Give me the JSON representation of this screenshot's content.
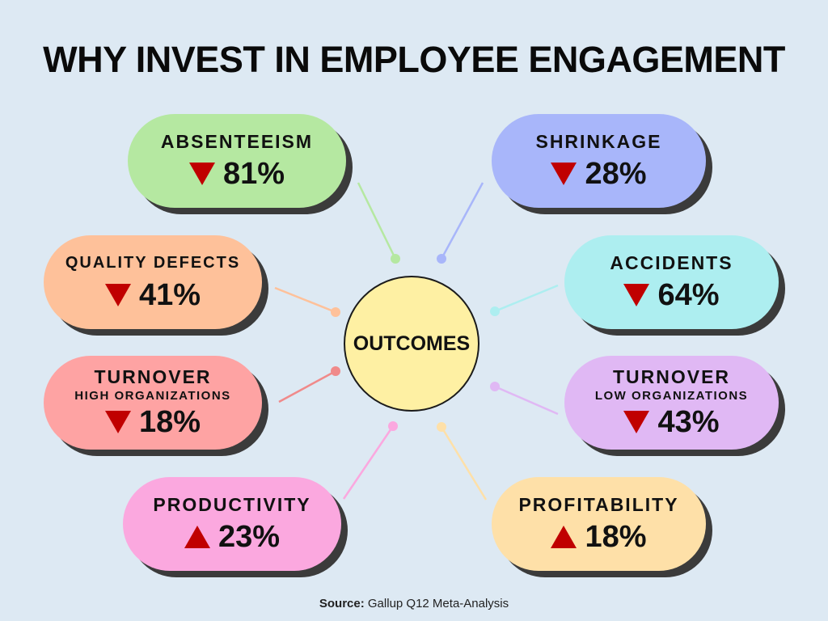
{
  "title": "WHY INVEST IN EMPLOYEE ENGAGEMENT",
  "hub": {
    "label": "OUTCOMES",
    "color": "#fef0a3"
  },
  "outcomes": [
    {
      "id": "absenteeism",
      "label": "ABSENTEEISM",
      "sublabel": "",
      "value": "81%",
      "direction": "down",
      "color": "#b5e8a1"
    },
    {
      "id": "shrinkage",
      "label": "SHRINKAGE",
      "sublabel": "",
      "value": "28%",
      "direction": "down",
      "color": "#a8b6fa"
    },
    {
      "id": "quality-defects",
      "label": "QUALITY DEFECTS",
      "sublabel": "",
      "value": "41%",
      "direction": "down",
      "color": "#fec19a"
    },
    {
      "id": "accidents",
      "label": "ACCIDENTS",
      "sublabel": "",
      "value": "64%",
      "direction": "down",
      "color": "#adeef0"
    },
    {
      "id": "turnover-high",
      "label": "TURNOVER",
      "sublabel": "HIGH ORGANIZATIONS",
      "value": "18%",
      "direction": "down",
      "color": "#fea3a3"
    },
    {
      "id": "turnover-low",
      "label": "TURNOVER",
      "sublabel": "LOW ORGANIZATIONS",
      "value": "43%",
      "direction": "down",
      "color": "#e0b8f4"
    },
    {
      "id": "productivity",
      "label": "PRODUCTIVITY",
      "sublabel": "",
      "value": "23%",
      "direction": "up",
      "color": "#fba8df"
    },
    {
      "id": "profitability",
      "label": "PROFITABILITY",
      "sublabel": "",
      "value": "18%",
      "direction": "up",
      "color": "#fee0a8"
    }
  ],
  "source": {
    "prefix": "Source:",
    "text": "Gallup Q12 Meta-Analysis"
  },
  "arrow_color": "#c00000"
}
